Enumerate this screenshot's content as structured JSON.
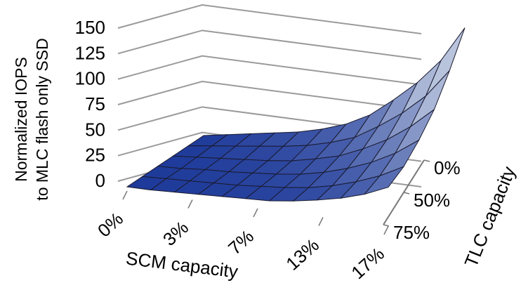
{
  "chart_data": {
    "type": "surface",
    "ylabel": [
      "Normalized IOPS",
      "to MLC flash only SSD"
    ],
    "xlabel": "SCM capacity",
    "zlabel": "TLC capacity",
    "y_ticks": [
      "0",
      "25",
      "50",
      "75",
      "100",
      "125",
      "150"
    ],
    "ylim": [
      0,
      150
    ],
    "x_ticks": [
      "0%",
      "3%",
      "7%",
      "13%",
      "17%"
    ],
    "z_ticks": [
      "0%",
      "50%",
      "75%"
    ],
    "grid": true,
    "colors": {
      "low": "#1e3a9a",
      "high": "#b8c3dc",
      "grid": "#9a9a9a",
      "mesh": "#1a1a2e"
    },
    "surface": {
      "note_rows": "rows from TLC 0% (back) to TLC 75% (front), columns from SCM 0% to 17%",
      "values": [
        [
          0,
          4,
          8,
          12,
          16,
          22,
          30,
          42,
          60,
          80,
          105,
          140
        ],
        [
          0,
          3,
          6,
          9,
          12,
          16,
          22,
          30,
          44,
          60,
          80,
          108
        ],
        [
          0,
          2,
          4,
          6,
          8,
          11,
          16,
          22,
          32,
          44,
          60,
          80
        ],
        [
          0,
          1,
          3,
          4,
          6,
          8,
          11,
          16,
          23,
          32,
          44,
          60
        ],
        [
          0,
          1,
          2,
          3,
          4,
          6,
          8,
          11,
          16,
          23,
          32,
          44
        ],
        [
          0,
          0,
          1,
          2,
          3,
          4,
          5,
          8,
          12,
          17,
          24,
          34
        ]
      ]
    }
  }
}
